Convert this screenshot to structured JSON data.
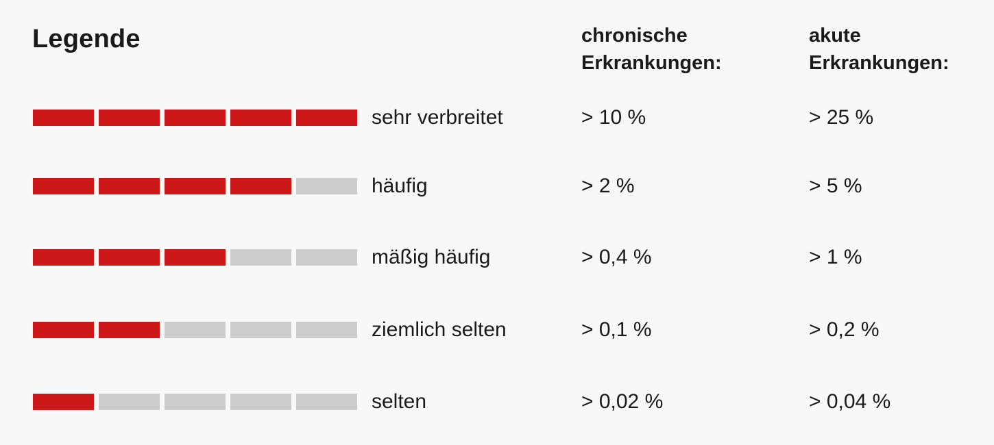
{
  "legend": {
    "title": "Legende",
    "columns": {
      "chronic_line1": "chronische",
      "chronic_line2": "Erkrankungen:",
      "acute_line1": "akute",
      "acute_line2": "Erkrankungen:"
    },
    "rows": [
      {
        "label": "sehr verbreitet",
        "level": 5,
        "max_level": 5,
        "chronic": "> 10 %",
        "acute": "> 25 %"
      },
      {
        "label": "häufig",
        "level": 4,
        "max_level": 5,
        "chronic": "> 2 %",
        "acute": "> 5 %"
      },
      {
        "label": "mäßig häufig",
        "level": 3,
        "max_level": 5,
        "chronic": "> 0,4 %",
        "acute": "> 1 %"
      },
      {
        "label": "ziemlich selten",
        "level": 2,
        "max_level": 5,
        "chronic": "> 0,1 %",
        "acute": "> 0,2 %"
      },
      {
        "label": "selten",
        "level": 1,
        "max_level": 5,
        "chronic": "> 0,02 %",
        "acute": "> 0,04 %"
      }
    ],
    "colors": {
      "active": "#cc1719",
      "inactive": "#cccccc",
      "background": "#f8f8f8",
      "text": "#1a1a1a"
    }
  }
}
